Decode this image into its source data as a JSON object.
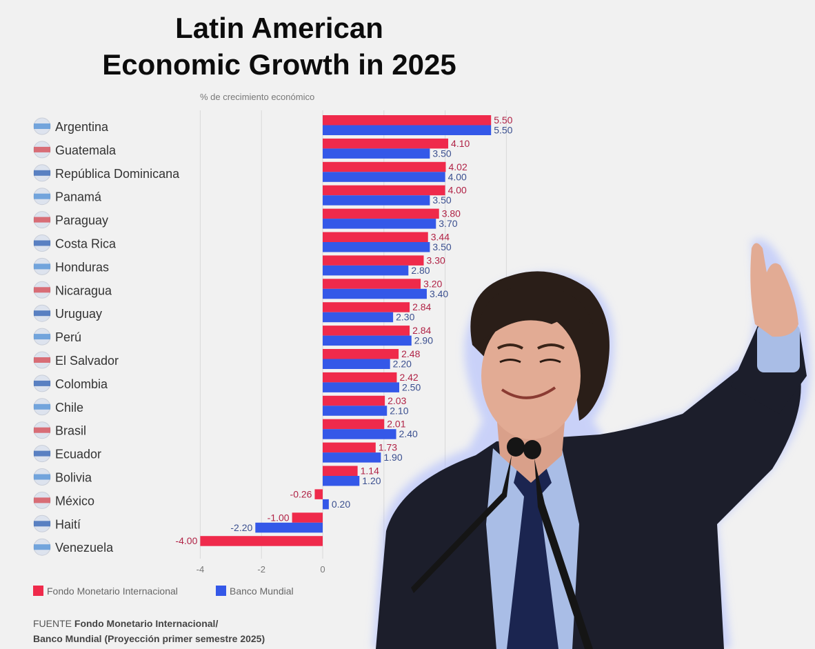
{
  "title_line1": "Latin American",
  "title_line2": "Economic Growth in 2025",
  "source_prefix": "FUENTE",
  "source_line1": "Fondo Monetario Internacional/",
  "source_line2": "Banco Mundial (Proyección primer semestre 2025)",
  "colors": {
    "imf": "#ef2a4b",
    "wb": "#3458e8",
    "imf_text": "#b02245",
    "wb_text": "#3a4f8f",
    "grid": "#d9d9d9",
    "label": "#333333"
  },
  "chart_data": {
    "type": "bar",
    "orientation": "horizontal",
    "subtitle": "% de crecimiento económico",
    "categories": [
      "Argentina",
      "Guatemala",
      "República Dominicana",
      "Panamá",
      "Paraguay",
      "Costa Rica",
      "Honduras",
      "Nicaragua",
      "Uruguay",
      "Perú",
      "El Salvador",
      "Colombia",
      "Chile",
      "Brasil",
      "Ecuador",
      "Bolivia",
      "México",
      "Haití",
      "Venezuela"
    ],
    "series": [
      {
        "name": "Fondo Monetario Internacional",
        "values": [
          5.5,
          4.1,
          4.02,
          4.0,
          3.8,
          3.44,
          3.3,
          3.2,
          2.84,
          2.84,
          2.48,
          2.42,
          2.03,
          2.01,
          1.73,
          1.14,
          -0.26,
          -1.0,
          -4.0
        ]
      },
      {
        "name": "Banco Mundial",
        "values": [
          5.5,
          3.5,
          4.0,
          3.5,
          3.7,
          3.5,
          2.8,
          3.4,
          2.3,
          2.9,
          2.2,
          2.5,
          2.1,
          2.4,
          1.9,
          1.2,
          0.2,
          -2.2,
          null
        ]
      }
    ],
    "xticks": [
      -4,
      -2,
      0
    ],
    "xlim": [
      -4,
      6
    ],
    "legend": "bottom-left",
    "grid": true
  }
}
